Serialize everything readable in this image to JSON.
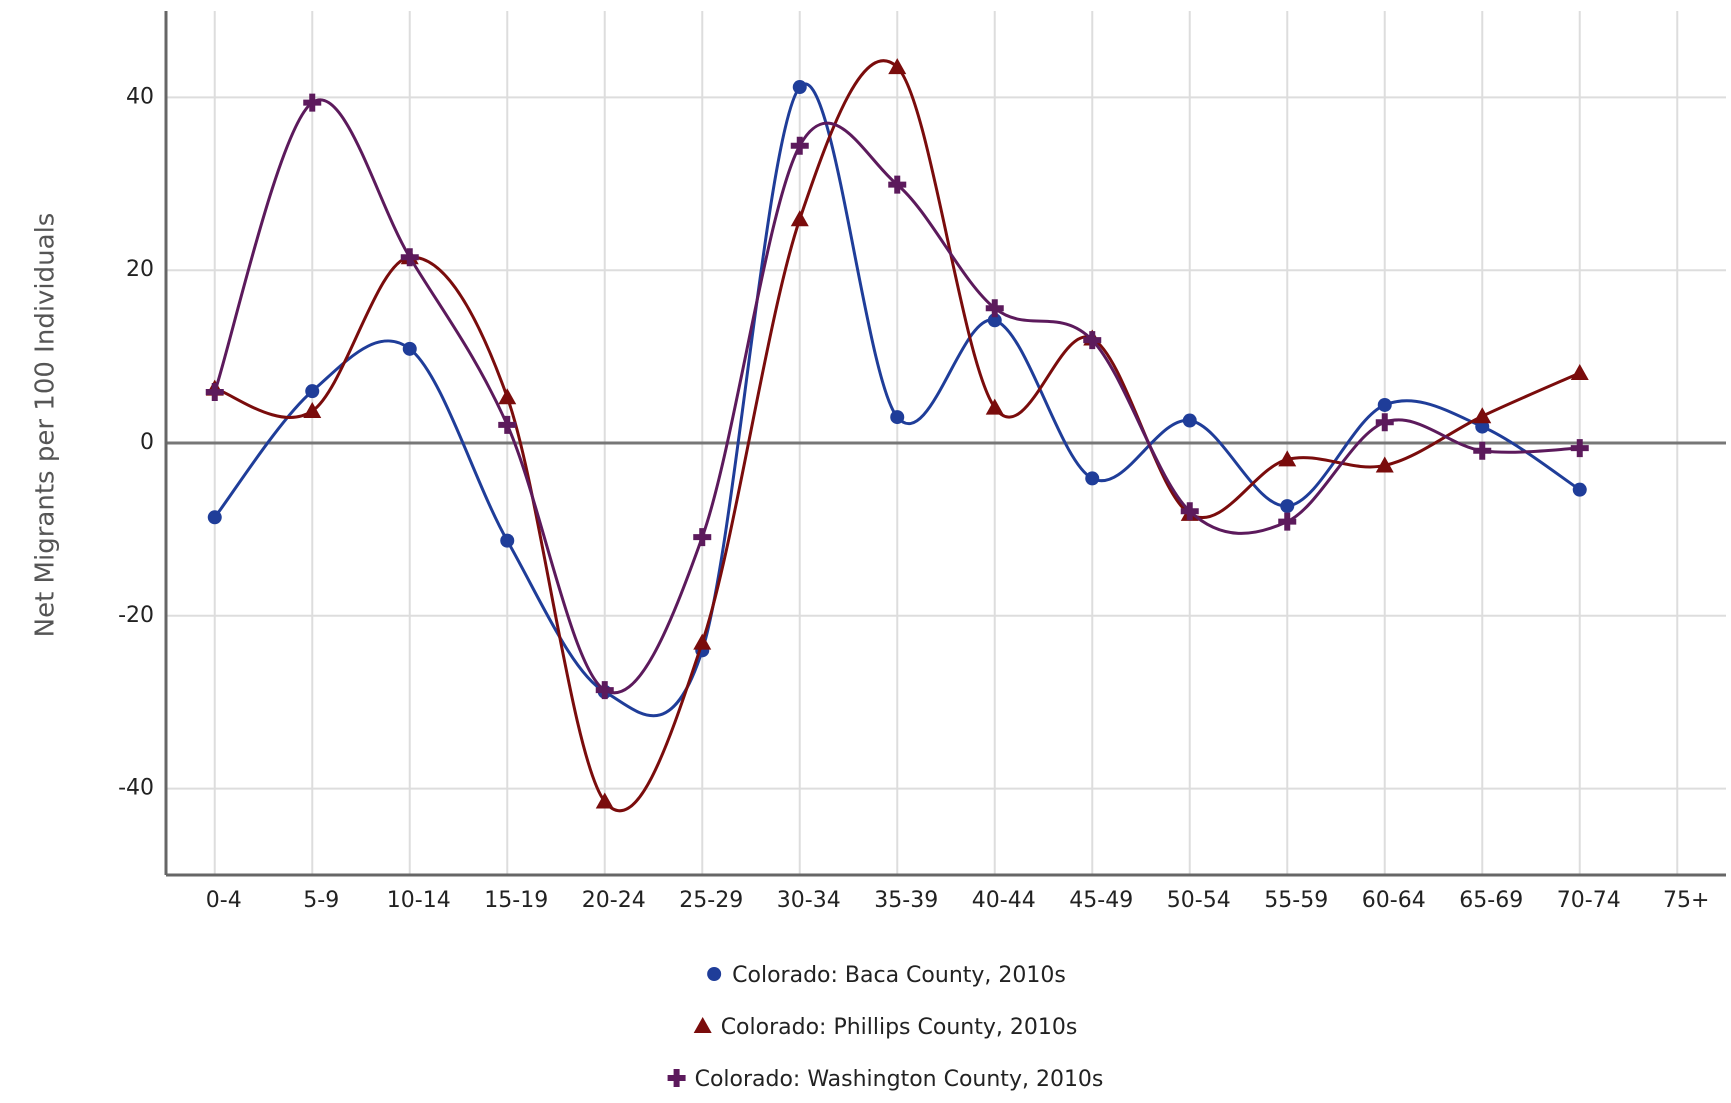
{
  "chart_data": {
    "type": "line",
    "smooth": true,
    "grid": true,
    "legend": "bottom",
    "y_label": "Net Migrants per 100 Individuals",
    "categories": [
      "0-4",
      "5-9",
      "10-14",
      "15-19",
      "20-24",
      "25-29",
      "30-34",
      "35-39",
      "40-44",
      "45-49",
      "50-54",
      "55-59",
      "60-64",
      "65-69",
      "70-74",
      "75+"
    ],
    "ylim": [
      -50,
      50
    ],
    "yticks": [
      -40,
      -20,
      0,
      20,
      40
    ],
    "series": [
      {
        "name": "Colorado: Baca County, 2010s",
        "color": "#1f3d99",
        "marker": "circle",
        "values": [
          -8.6,
          6,
          10.9,
          -11.3,
          -28.8,
          -24,
          41.2,
          3,
          14.2,
          -4.1,
          2.6,
          -7.3,
          4.4,
          1.9,
          -5.4,
          null
        ]
      },
      {
        "name": "Colorado: Phillips County, 2010s",
        "color": "#7a0c0c",
        "marker": "triangle",
        "values": [
          6.3,
          3.7,
          21.5,
          5.3,
          -41.5,
          -23.1,
          25.9,
          43.5,
          4.1,
          12.1,
          -8.2,
          -1.9,
          -2.6,
          3.1,
          8.1,
          null
        ]
      },
      {
        "name": "Colorado: Washington County, 2010s",
        "color": "#5c1a5c",
        "marker": "cross",
        "values": [
          5.9,
          39.4,
          21.5,
          2.1,
          -28.6,
          -10.9,
          34.4,
          29.9,
          15.6,
          11.9,
          -7.9,
          -9.1,
          2.4,
          -0.9,
          -0.6,
          null
        ]
      }
    ]
  }
}
